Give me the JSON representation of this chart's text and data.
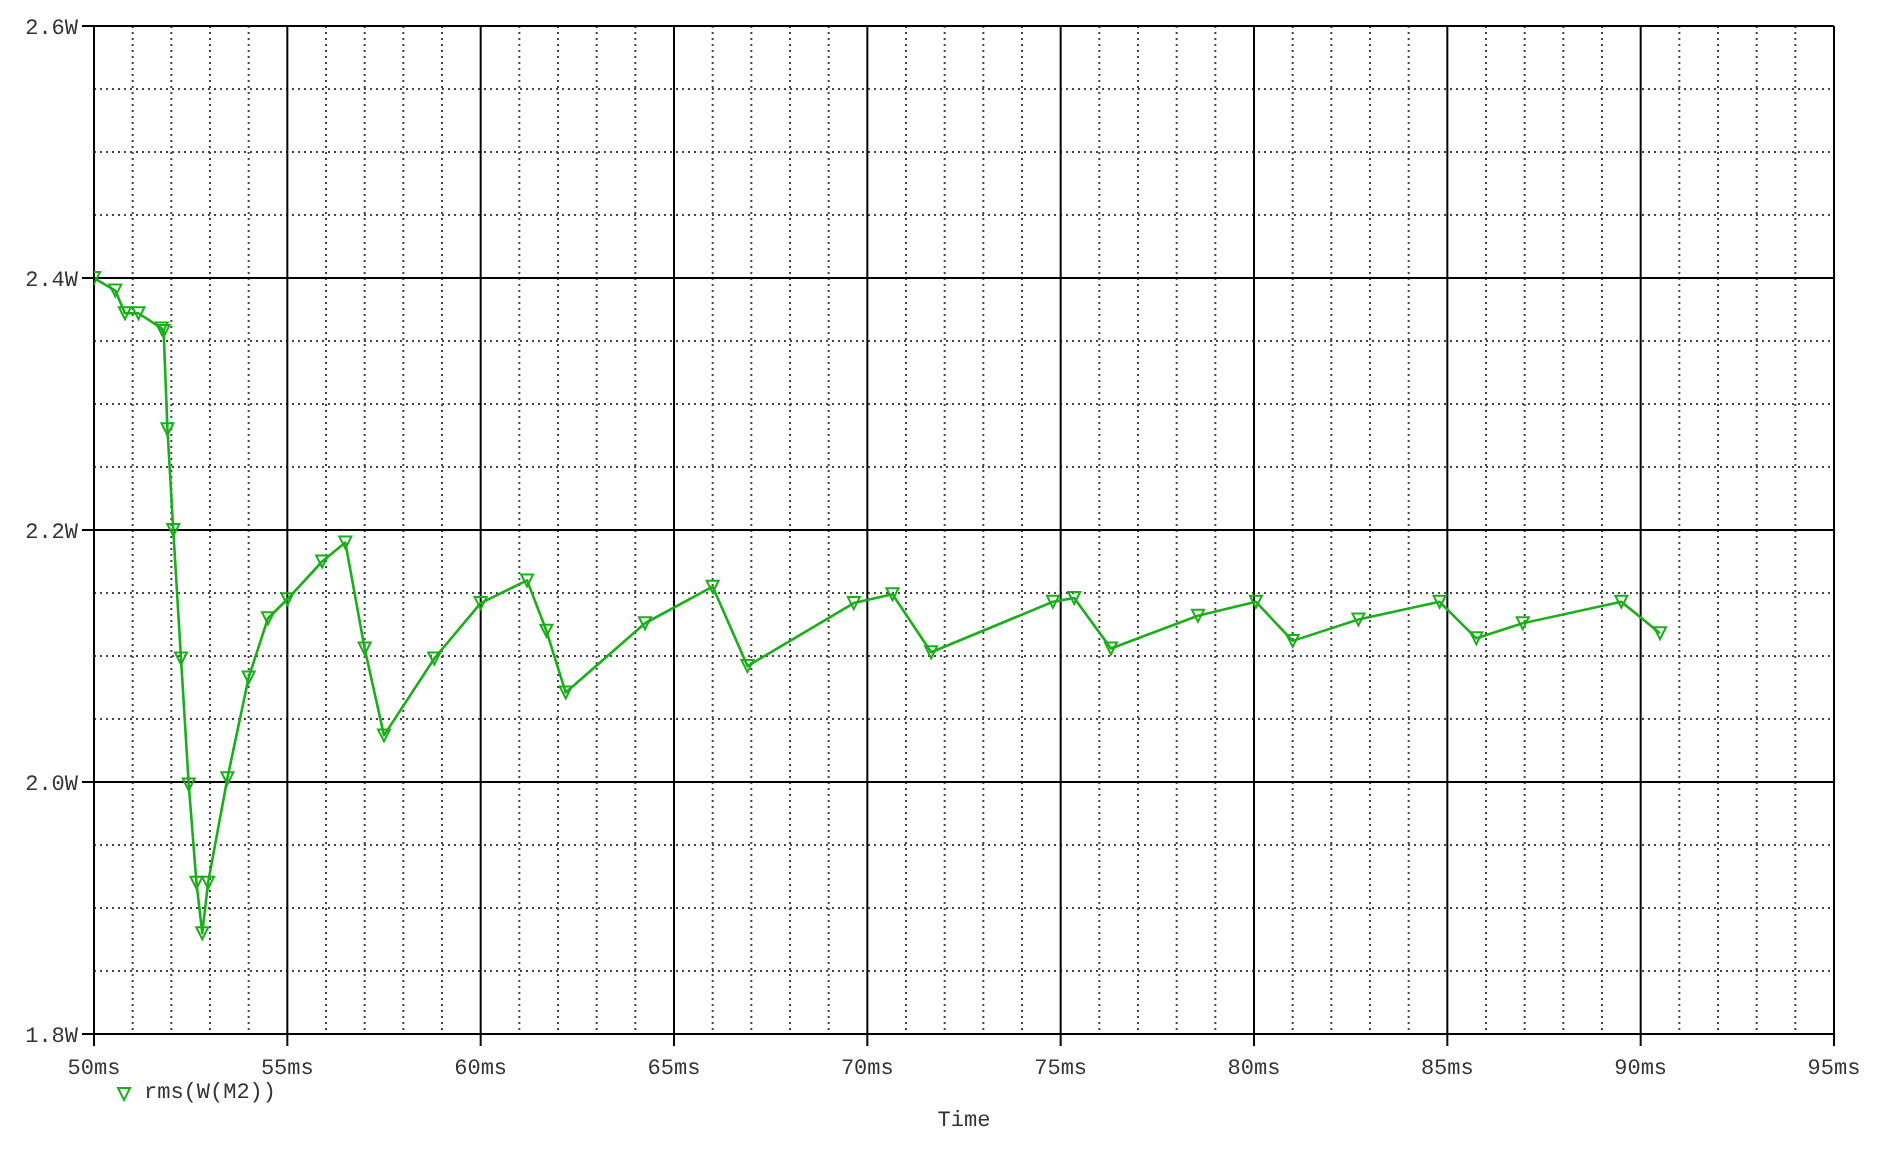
{
  "chart_data": {
    "type": "line",
    "xlabel": "Time",
    "x": [
      50.0,
      50.55,
      50.8,
      51.15,
      51.75,
      51.8,
      51.9,
      52.05,
      52.25,
      52.45,
      52.65,
      52.8,
      52.95,
      53.45,
      54.0,
      54.5,
      55.0,
      55.9,
      56.5,
      57.0,
      57.5,
      58.8,
      60.0,
      61.2,
      61.7,
      62.2,
      64.25,
      66.0,
      66.9,
      69.65,
      70.65,
      71.65,
      74.8,
      75.35,
      76.3,
      78.55,
      80.05,
      81.0,
      82.7,
      84.8,
      85.75,
      86.95,
      89.5,
      90.5
    ],
    "series": [
      {
        "name": "rms(W(M2))",
        "color": "#1aaf1a",
        "values": [
          2.4,
          2.39,
          2.372,
          2.372,
          2.36,
          2.358,
          2.28,
          2.2,
          2.098,
          1.998,
          1.92,
          1.88,
          1.92,
          2.003,
          2.083,
          2.13,
          2.145,
          2.175,
          2.19,
          2.106,
          2.037,
          2.098,
          2.142,
          2.16,
          2.12,
          2.071,
          2.126,
          2.155,
          2.092,
          2.142,
          2.149,
          2.103,
          2.143,
          2.146,
          2.106,
          2.132,
          2.143,
          2.112,
          2.129,
          2.143,
          2.114,
          2.126,
          2.143,
          2.118
        ]
      }
    ],
    "xlim": [
      50,
      95
    ],
    "xticks": [
      {
        "value": 50,
        "label": "50ms"
      },
      {
        "value": 55,
        "label": "55ms"
      },
      {
        "value": 60,
        "label": "60ms"
      },
      {
        "value": 65,
        "label": "65ms"
      },
      {
        "value": 70,
        "label": "70ms"
      },
      {
        "value": 75,
        "label": "75ms"
      },
      {
        "value": 80,
        "label": "80ms"
      },
      {
        "value": 85,
        "label": "85ms"
      },
      {
        "value": 90,
        "label": "90ms"
      },
      {
        "value": 95,
        "label": "95ms"
      }
    ],
    "ylim": [
      1.8,
      2.6
    ],
    "yticks": [
      {
        "value": 1.8,
        "label": "1.8W"
      },
      {
        "value": 2.0,
        "label": "2.0W"
      },
      {
        "value": 2.2,
        "label": "2.2W"
      },
      {
        "value": 2.4,
        "label": "2.4W"
      },
      {
        "value": 2.6,
        "label": "2.6W"
      }
    ],
    "grid": true,
    "legend": "bottom left",
    "marker": "triangle",
    "line_style": "solid"
  }
}
